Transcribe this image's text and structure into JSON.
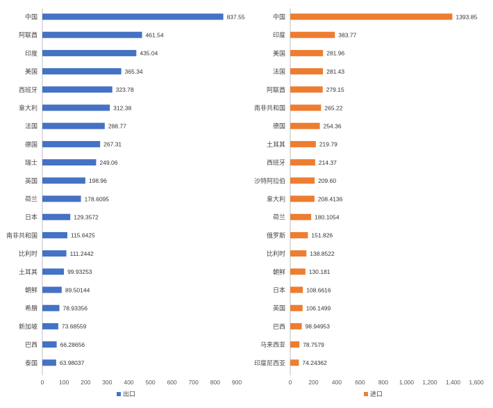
{
  "chart_data": [
    {
      "type": "bar",
      "orientation": "horizontal",
      "color": "#4472C4",
      "legend": "出口",
      "legend_position": "bottom",
      "xlim": [
        0,
        900
      ],
      "xticks": [
        "0",
        "100",
        "200",
        "300",
        "400",
        "500",
        "600",
        "700",
        "800",
        "900"
      ],
      "xtick_values": [
        0,
        100,
        200,
        300,
        400,
        500,
        600,
        700,
        800,
        900
      ],
      "grid": false,
      "categories": [
        "中国",
        "阿联酋",
        "印度",
        "美国",
        "西班牙",
        "意大利",
        "法国",
        "德国",
        "瑞士",
        "英国",
        "荷兰",
        "日本",
        "南非共和国",
        "比利时",
        "土耳其",
        "朝鲜",
        "希腊",
        "新加坡",
        "巴西",
        "泰国"
      ],
      "values": [
        837.55,
        461.54,
        435.04,
        365.34,
        323.78,
        312.38,
        288.77,
        267.31,
        249.06,
        198.96,
        178.6095,
        129.3572,
        115.6425,
        111.2442,
        99.93253,
        89.50144,
        78.93356,
        73.68559,
        66.28656,
        63.98037
      ],
      "labels": [
        "837.55",
        "461.54",
        "435.04",
        "365.34",
        "323.78",
        "312.38",
        "288.77",
        "267.31",
        "249.06",
        "198.96",
        "178.6095",
        "129.3572",
        "115.6425",
        "111.2442",
        "99.93253",
        "89.50144",
        "78.93356",
        "73.68559",
        "66.28656",
        "63.98037"
      ]
    },
    {
      "type": "bar",
      "orientation": "horizontal",
      "color": "#ED7D31",
      "legend": "进口",
      "legend_position": "bottom",
      "xlim": [
        0,
        1600
      ],
      "xticks": [
        "0",
        "200",
        "400",
        "600",
        "800",
        "1,000",
        "1,200",
        "1,400",
        "1,600"
      ],
      "xtick_values": [
        0,
        200,
        400,
        600,
        800,
        1000,
        1200,
        1400,
        1600
      ],
      "grid": false,
      "categories": [
        "中国",
        "印度",
        "美国",
        "法国",
        "阿联酋",
        "南非共和国",
        "德国",
        "土耳其",
        "西班牙",
        "沙特阿拉伯",
        "意大利",
        "荷兰",
        "俄罗斯",
        "比利时",
        "朝鲜",
        "日本",
        "英国",
        "巴西",
        "马来西亚",
        "印度尼西亚"
      ],
      "values": [
        1393.85,
        383.77,
        281.96,
        281.43,
        279.15,
        265.22,
        254.36,
        219.79,
        214.37,
        209.6,
        208.4136,
        180.1054,
        151.826,
        138.8522,
        130.181,
        108.6616,
        106.1499,
        98.94953,
        78.7579,
        74.24362
      ],
      "labels": [
        "1393.85",
        "383.77",
        "281.96",
        "281.43",
        "279.15",
        "265.22",
        "254.36",
        "219.79",
        "214.37",
        "209.60",
        "208.4136",
        "180.1054",
        "151.826",
        "138.8522",
        "130.181",
        "108.6616",
        "106.1499",
        "98.94953",
        "78.7579",
        "74.24362"
      ]
    }
  ]
}
